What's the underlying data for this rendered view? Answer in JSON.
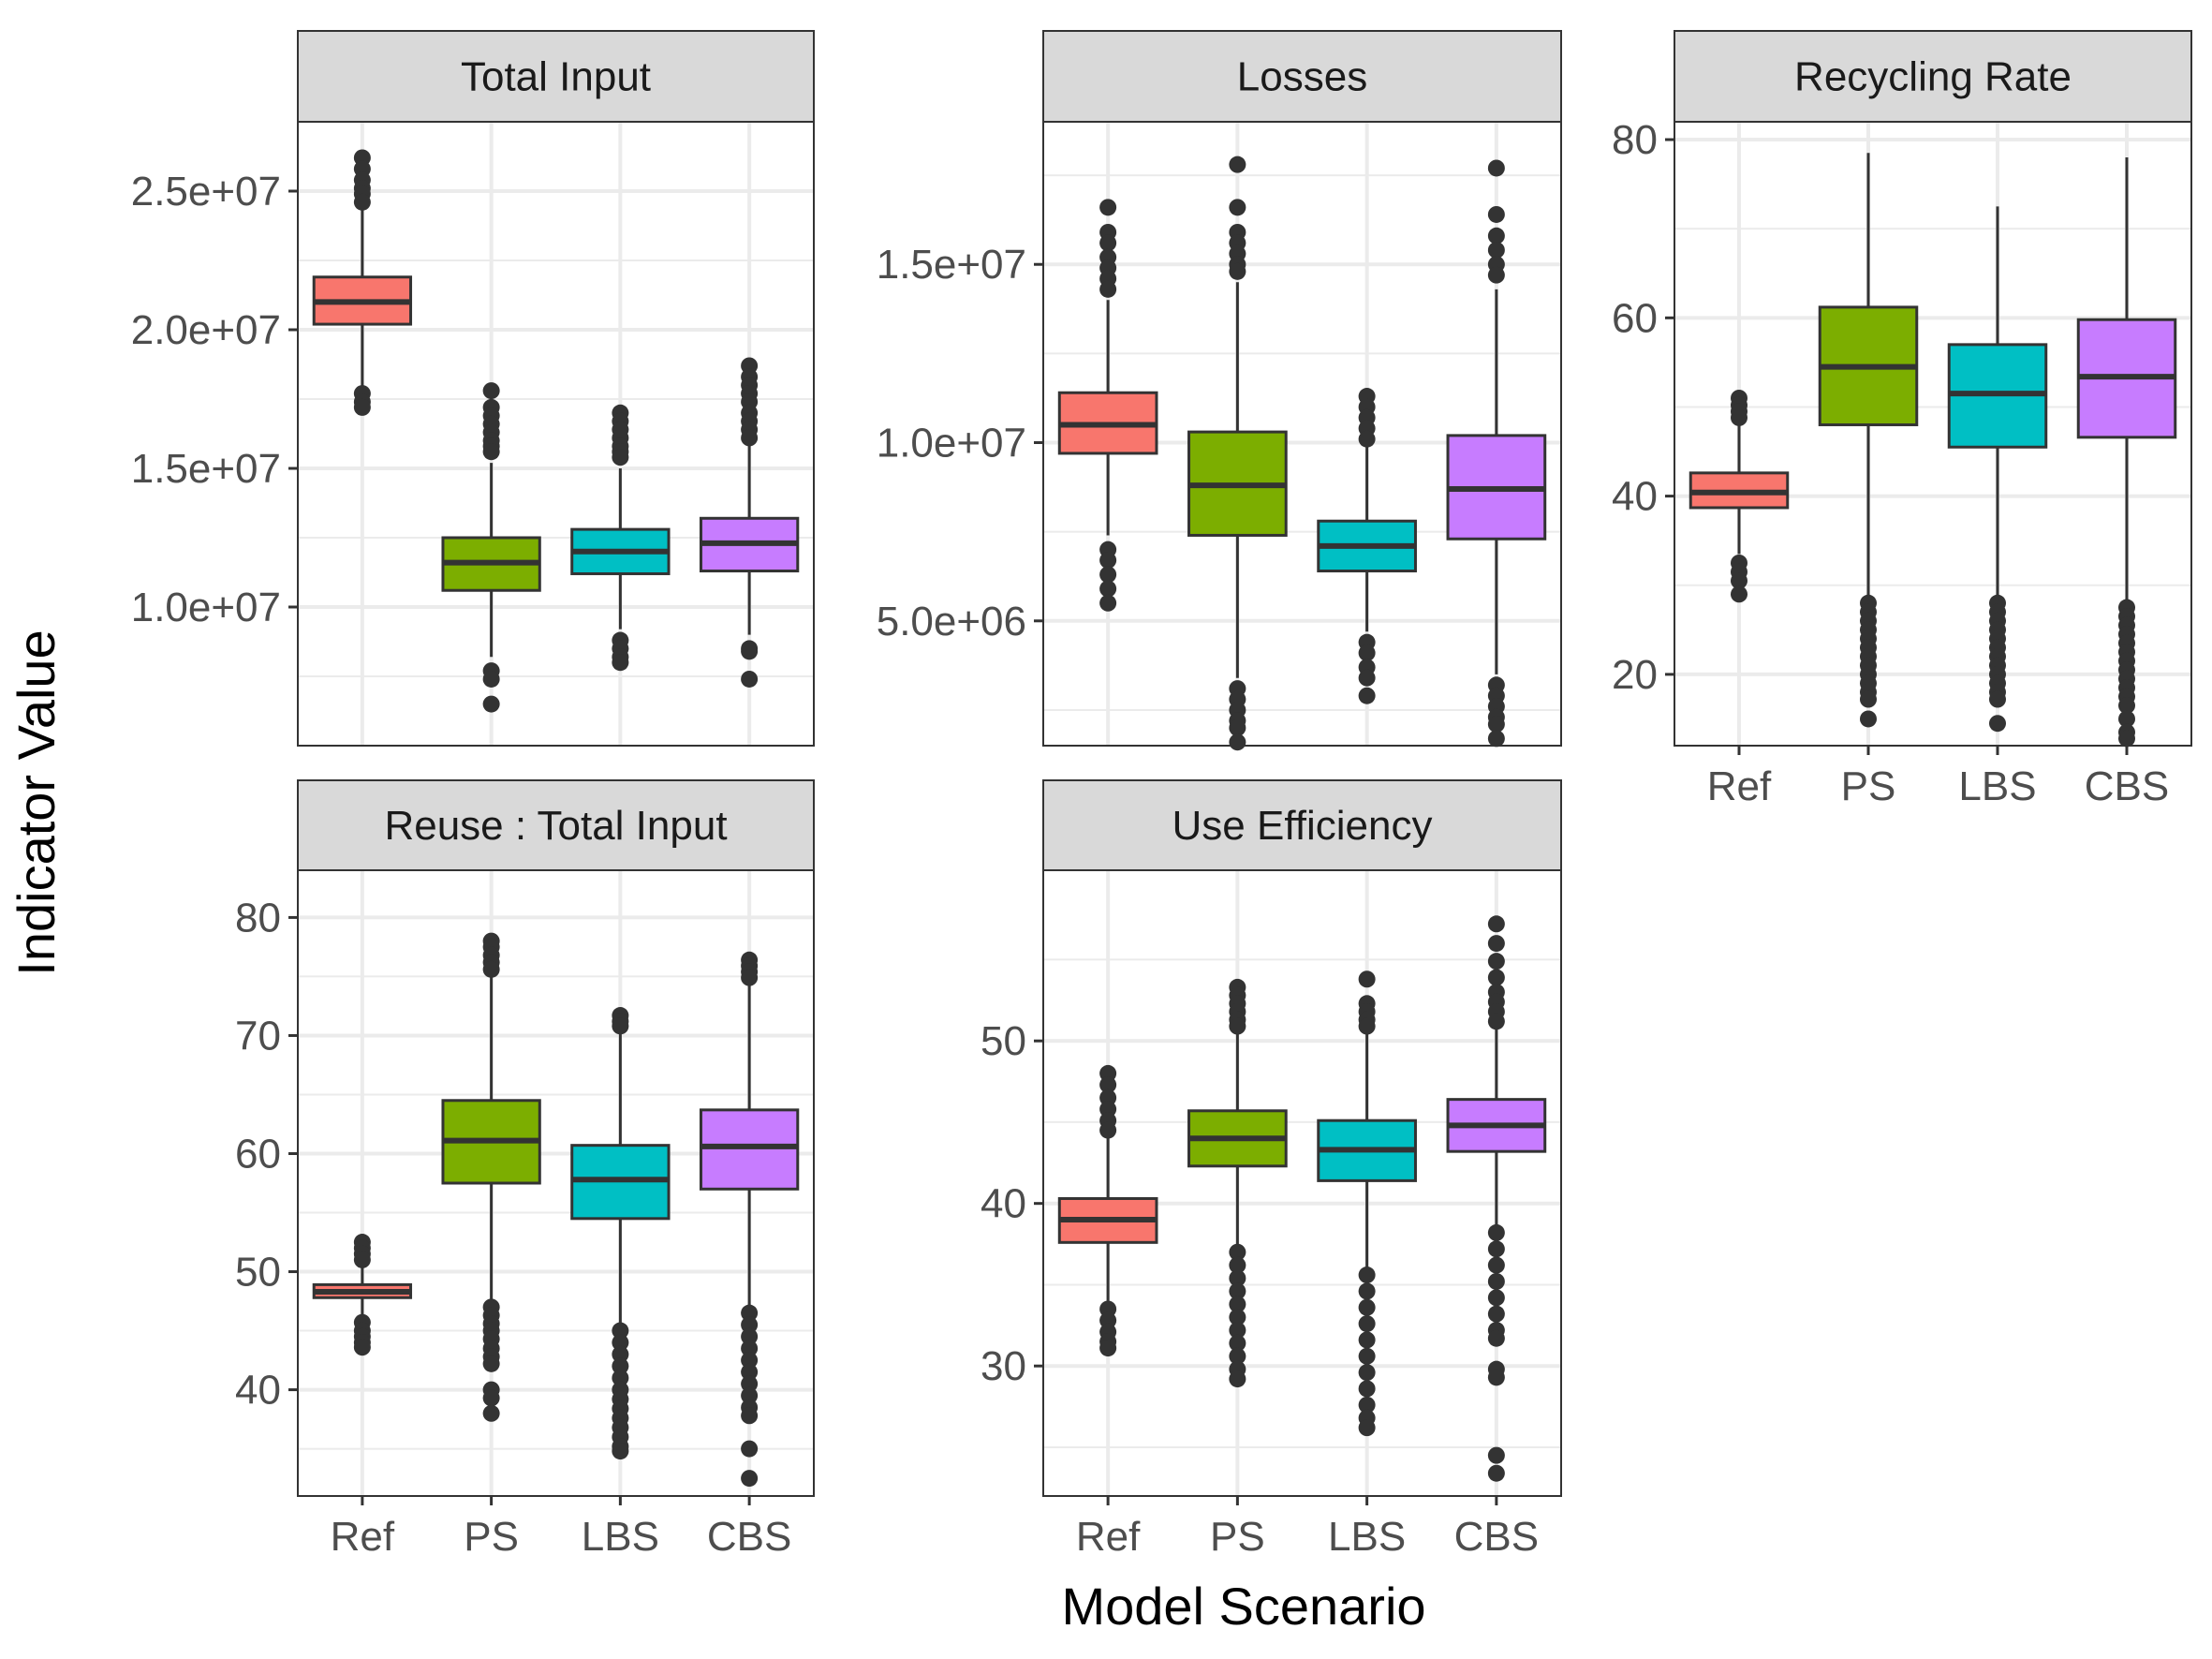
{
  "figure": {
    "xlabel": "Model Scenario",
    "ylabel": "Indicator Value"
  },
  "chart_data": [
    {
      "type": "box",
      "title": "Total Input",
      "categories": [
        "Ref",
        "PS",
        "LBS",
        "CBS"
      ],
      "show_x_ticks": false,
      "ylim": [
        5000000,
        27500000
      ],
      "yticks": [
        10000000,
        15000000,
        20000000,
        25000000
      ],
      "ytick_labels": [
        "1.0e+07",
        "1.5e+07",
        "2.0e+07",
        "2.5e+07"
      ],
      "grid": true,
      "boxes": [
        {
          "category": "Ref",
          "lower_whisker": 17900000,
          "q1": 20200000,
          "median": 21000000,
          "q3": 21900000,
          "upper_whisker": 24400000,
          "outliers": [
            26200000,
            25800000,
            25400000,
            25100000,
            24900000,
            24600000,
            17700000,
            17400000,
            17200000
          ]
        },
        {
          "category": "PS",
          "lower_whisker": 8200000,
          "q1": 10600000,
          "median": 11600000,
          "q3": 12500000,
          "upper_whisker": 15200000,
          "outliers": [
            17800000,
            17200000,
            16900000,
            16600000,
            16300000,
            16000000,
            15800000,
            15600000,
            7700000,
            7400000,
            6500000
          ]
        },
        {
          "category": "LBS",
          "lower_whisker": 9200000,
          "q1": 11200000,
          "median": 12000000,
          "q3": 12800000,
          "upper_whisker": 15000000,
          "outliers": [
            17000000,
            16700000,
            16400000,
            16100000,
            15800000,
            15600000,
            15400000,
            8800000,
            8500000,
            8200000,
            8000000
          ]
        },
        {
          "category": "CBS",
          "lower_whisker": 9000000,
          "q1": 11300000,
          "median": 12300000,
          "q3": 13200000,
          "upper_whisker": 15900000,
          "outliers": [
            18700000,
            18300000,
            18000000,
            17700000,
            17400000,
            17000000,
            16700000,
            16400000,
            16100000,
            8500000,
            8400000,
            7400000
          ]
        }
      ]
    },
    {
      "type": "box",
      "title": "Losses",
      "categories": [
        "Ref",
        "PS",
        "LBS",
        "CBS"
      ],
      "show_x_ticks": false,
      "ylim": [
        1500000,
        19000000
      ],
      "yticks": [
        5000000,
        10000000,
        15000000
      ],
      "ytick_labels": [
        "5.0e+06",
        "1.0e+07",
        "1.5e+07"
      ],
      "grid": true,
      "boxes": [
        {
          "category": "Ref",
          "lower_whisker": 7400000,
          "q1": 9700000,
          "median": 10500000,
          "q3": 11400000,
          "upper_whisker": 14000000,
          "outliers": [
            16600000,
            15900000,
            15600000,
            15200000,
            14900000,
            14600000,
            14300000,
            7000000,
            6700000,
            6300000,
            5900000,
            5500000
          ]
        },
        {
          "category": "PS",
          "lower_whisker": 3400000,
          "q1": 7400000,
          "median": 8800000,
          "q3": 10300000,
          "upper_whisker": 14500000,
          "outliers": [
            17800000,
            16600000,
            15900000,
            15600000,
            15300000,
            15000000,
            14800000,
            3100000,
            2800000,
            2500000,
            2200000,
            2000000,
            1600000
          ]
        },
        {
          "category": "LBS",
          "lower_whisker": 4700000,
          "q1": 6400000,
          "median": 7100000,
          "q3": 7800000,
          "upper_whisker": 9900000,
          "outliers": [
            11300000,
            11000000,
            10700000,
            10400000,
            10100000,
            4400000,
            4100000,
            3700000,
            3400000,
            2900000
          ]
        },
        {
          "category": "CBS",
          "lower_whisker": 3500000,
          "q1": 7300000,
          "median": 8700000,
          "q3": 10200000,
          "upper_whisker": 14300000,
          "outliers": [
            17700000,
            16400000,
            15800000,
            15400000,
            15000000,
            14700000,
            3200000,
            2900000,
            2600000,
            2300000,
            2100000,
            1700000
          ]
        }
      ]
    },
    {
      "type": "box",
      "title": "Recycling Rate",
      "categories": [
        "Ref",
        "PS",
        "LBS",
        "CBS"
      ],
      "show_x_ticks": true,
      "ylim": [
        12,
        82
      ],
      "yticks": [
        20,
        40,
        60,
        80
      ],
      "ytick_labels": [
        "20",
        "40",
        "60",
        "80"
      ],
      "grid": true,
      "boxes": [
        {
          "category": "Ref",
          "lower_whisker": 33.5,
          "q1": 38.7,
          "median": 40.4,
          "q3": 42.6,
          "upper_whisker": 48,
          "outliers": [
            51,
            50.2,
            49.5,
            48.8,
            32.5,
            31.5,
            30.5,
            29
          ]
        },
        {
          "category": "PS",
          "lower_whisker": 28.5,
          "q1": 48,
          "median": 54.5,
          "q3": 61.2,
          "upper_whisker": 78.5,
          "outliers": [
            28,
            27,
            26,
            25,
            24,
            23,
            22,
            21,
            20,
            19,
            18,
            17.2,
            15
          ]
        },
        {
          "category": "LBS",
          "lower_whisker": 28.5,
          "q1": 45.5,
          "median": 51.5,
          "q3": 57,
          "upper_whisker": 72.5,
          "outliers": [
            28,
            27,
            26,
            25,
            24,
            23,
            22,
            21,
            20,
            19,
            18,
            17.2,
            14.5
          ]
        },
        {
          "category": "CBS",
          "lower_whisker": 28,
          "q1": 46.6,
          "median": 53.4,
          "q3": 59.8,
          "upper_whisker": 78,
          "outliers": [
            27.5,
            26.5,
            25.5,
            24.5,
            23.5,
            22.5,
            21.5,
            20.5,
            19.5,
            18.5,
            17.5,
            16.5,
            15,
            13.5,
            12.8
          ]
        }
      ]
    },
    {
      "type": "box",
      "title": "Reuse : Total Input",
      "categories": [
        "Ref",
        "PS",
        "LBS",
        "CBS"
      ],
      "show_x_ticks": true,
      "ylim": [
        31,
        84
      ],
      "yticks": [
        40,
        50,
        60,
        70,
        80
      ],
      "ytick_labels": [
        "40",
        "50",
        "60",
        "70",
        "80"
      ],
      "grid": true,
      "boxes": [
        {
          "category": "Ref",
          "lower_whisker": 46,
          "q1": 47.8,
          "median": 48.3,
          "q3": 48.9,
          "upper_whisker": 50.7,
          "outliers": [
            52.5,
            52,
            51.5,
            51,
            45.7,
            45,
            44.5,
            44,
            43.6
          ]
        },
        {
          "category": "PS",
          "lower_whisker": 47.5,
          "q1": 57.5,
          "median": 61.1,
          "q3": 64.5,
          "upper_whisker": 75,
          "outliers": [
            78,
            77.5,
            76.8,
            76.2,
            75.6,
            47,
            46.3,
            45.6,
            45,
            44.3,
            43.5,
            42.8,
            42.2,
            40,
            39.3,
            38
          ]
        },
        {
          "category": "LBS",
          "lower_whisker": 45.5,
          "q1": 54.5,
          "median": 57.8,
          "q3": 60.7,
          "upper_whisker": 70.4,
          "outliers": [
            71.7,
            71.2,
            70.8,
            45,
            44,
            43,
            42,
            41,
            40,
            39.2,
            38.4,
            37.6,
            36.8,
            36,
            35.2,
            34.8
          ]
        },
        {
          "category": "CBS",
          "lower_whisker": 47,
          "q1": 57,
          "median": 60.6,
          "q3": 63.7,
          "upper_whisker": 74.5,
          "outliers": [
            76.4,
            75.9,
            75.4,
            74.9,
            46.5,
            45.5,
            44.5,
            43.5,
            42.5,
            41.5,
            40.5,
            39.5,
            38.5,
            37.8,
            35,
            32.5
          ]
        }
      ]
    },
    {
      "type": "box",
      "title": "Use Efficiency",
      "categories": [
        "Ref",
        "PS",
        "LBS",
        "CBS"
      ],
      "show_x_ticks": true,
      "ylim": [
        22,
        60.5
      ],
      "yticks": [
        30,
        40,
        50
      ],
      "ytick_labels": [
        "30",
        "40",
        "50"
      ],
      "grid": true,
      "boxes": [
        {
          "category": "Ref",
          "lower_whisker": 34,
          "q1": 37.6,
          "median": 39,
          "q3": 40.3,
          "upper_whisker": 44.2,
          "outliers": [
            48,
            47.3,
            46.5,
            45.8,
            45.1,
            44.5,
            33.5,
            32.8,
            32.1,
            31.5,
            31.1
          ]
        },
        {
          "category": "PS",
          "lower_whisker": 37.5,
          "q1": 42.3,
          "median": 44,
          "q3": 45.7,
          "upper_whisker": 50.5,
          "outliers": [
            53.3,
            52.8,
            52.3,
            51.8,
            51.3,
            50.9,
            37,
            36.2,
            35.4,
            34.6,
            33.8,
            33,
            32.2,
            31.4,
            30.6,
            29.8,
            29.2
          ]
        },
        {
          "category": "LBS",
          "lower_whisker": 36,
          "q1": 41.4,
          "median": 43.3,
          "q3": 45.1,
          "upper_whisker": 50.5,
          "outliers": [
            53.8,
            52.3,
            51.8,
            51.3,
            50.9,
            35.6,
            34.6,
            33.6,
            32.6,
            31.6,
            30.6,
            29.6,
            28.6,
            27.6,
            26.8,
            26.2
          ]
        },
        {
          "category": "CBS",
          "lower_whisker": 38.5,
          "q1": 43.2,
          "median": 44.8,
          "q3": 46.4,
          "upper_whisker": 51,
          "outliers": [
            57.2,
            56,
            54.9,
            53.9,
            53,
            52.4,
            51.8,
            51.2,
            38.2,
            37.2,
            36.2,
            35.2,
            34.2,
            33.2,
            32.2,
            31.7,
            29.8,
            29.3,
            24.5,
            23.4
          ]
        }
      ]
    }
  ],
  "colors": {
    "Ref": "#F8766D",
    "PS": "#7CAE00",
    "LBS": "#00BFC4",
    "CBS": "#C77CFF",
    "strip_fill": "#D9D9D9",
    "grid": "#EBEBEB",
    "ink": "#333333"
  }
}
